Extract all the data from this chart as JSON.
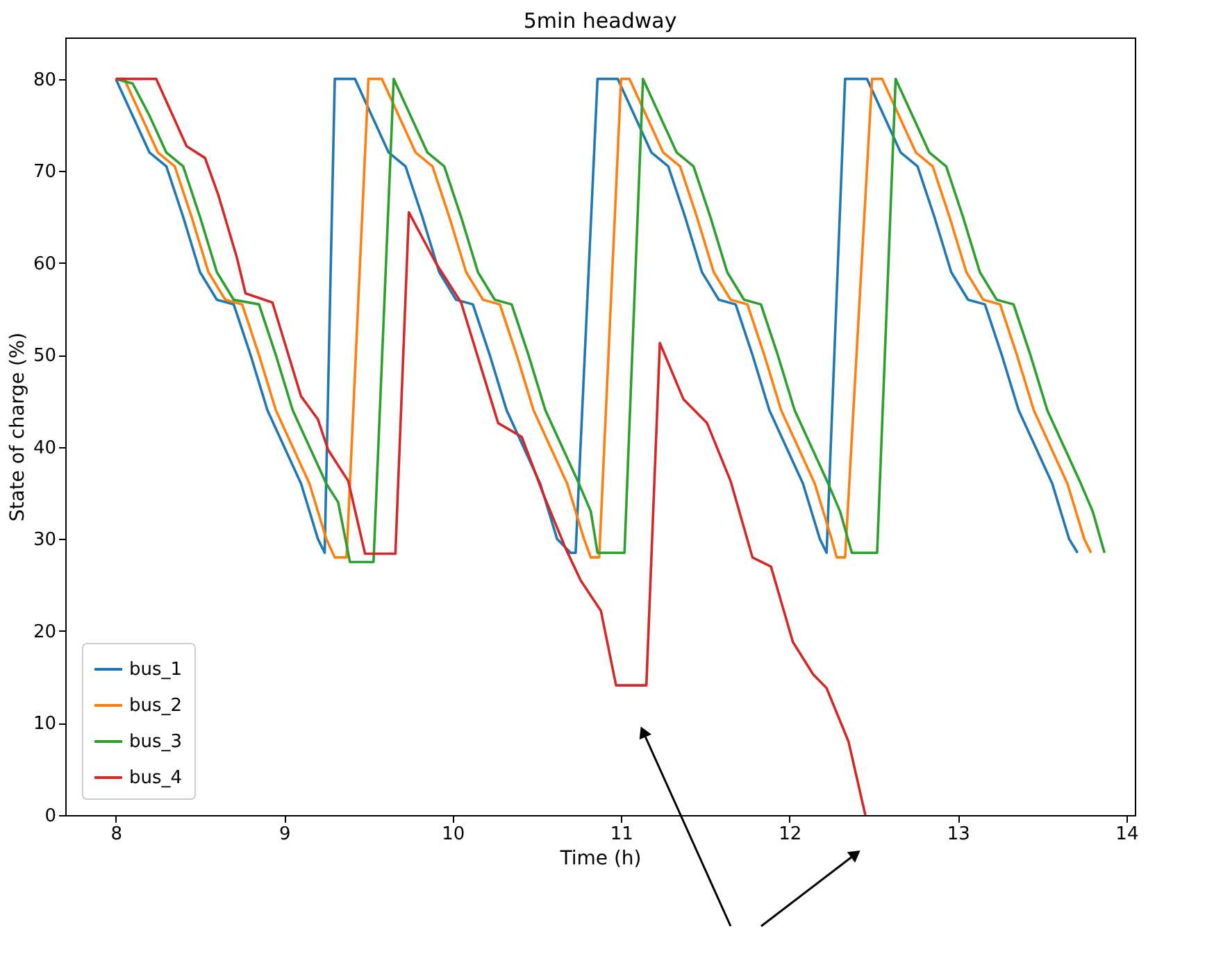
{
  "chart_data": {
    "type": "line",
    "title": "5min headway",
    "xlabel": "Time (h)",
    "ylabel": "State of charge (%)",
    "xlim": [
      7.7,
      14.05
    ],
    "ylim": [
      0,
      84.5
    ],
    "xticks": [
      8,
      9,
      10,
      11,
      12,
      13,
      14
    ],
    "yticks": [
      0,
      10,
      20,
      30,
      40,
      50,
      60,
      70,
      80
    ],
    "grid": false,
    "legend": "bottom left",
    "marker": "none",
    "line_style": "solid",
    "series": [
      {
        "name": "bus_1",
        "color": "#1f77b4",
        "x": [
          8.0,
          8.1,
          8.2,
          8.3,
          8.4,
          8.5,
          8.6,
          8.7,
          8.8,
          8.9,
          9.0,
          9.1,
          9.2,
          9.24,
          9.3,
          9.42,
          9.52,
          9.62,
          9.72,
          9.82,
          9.92,
          10.02,
          10.12,
          10.22,
          10.32,
          10.42,
          10.52,
          10.62,
          10.7,
          10.73,
          10.86,
          10.98,
          11.08,
          11.18,
          11.28,
          11.38,
          11.48,
          11.58,
          11.68,
          11.78,
          11.88,
          11.98,
          12.08,
          12.18,
          12.22,
          12.33,
          12.46,
          12.56,
          12.66,
          12.76,
          12.86,
          12.96,
          13.06,
          13.16,
          13.26,
          13.36,
          13.46,
          13.56,
          13.66,
          13.71
        ],
        "values": [
          80,
          76,
          72,
          70.5,
          65,
          59,
          56,
          55.5,
          50,
          44,
          40,
          36,
          30,
          28.5,
          80,
          80,
          76,
          72,
          70.5,
          65,
          59,
          56,
          55.5,
          50,
          44,
          40,
          36,
          30,
          28.5,
          28.5,
          80,
          80,
          76,
          72,
          70.5,
          65,
          59,
          56,
          55.5,
          50,
          44,
          40,
          36,
          30,
          28.5,
          80,
          80,
          76,
          72,
          70.5,
          65,
          59,
          56,
          55.5,
          50,
          44,
          40,
          36,
          30,
          28.5
        ]
      },
      {
        "name": "bus_2",
        "color": "#ff7f0e",
        "x": [
          8.0,
          8.05,
          8.15,
          8.25,
          8.35,
          8.45,
          8.55,
          8.65,
          8.75,
          8.85,
          8.95,
          9.05,
          9.15,
          9.25,
          9.3,
          9.37,
          9.5,
          9.58,
          9.68,
          9.78,
          9.88,
          9.98,
          10.08,
          10.18,
          10.28,
          10.38,
          10.48,
          10.58,
          10.68,
          10.78,
          10.82,
          10.87,
          11.0,
          11.05,
          11.15,
          11.25,
          11.35,
          11.45,
          11.55,
          11.65,
          11.75,
          11.85,
          11.95,
          12.05,
          12.15,
          12.25,
          12.28,
          12.33,
          12.49,
          12.55,
          12.65,
          12.75,
          12.85,
          12.95,
          13.05,
          13.15,
          13.25,
          13.35,
          13.45,
          13.55,
          13.65,
          13.75,
          13.79
        ],
        "values": [
          80,
          80,
          76,
          72,
          70.5,
          65,
          59,
          56,
          55.5,
          50,
          44,
          40,
          36,
          30,
          28,
          28,
          80,
          80,
          76,
          72,
          70.5,
          65,
          59,
          56,
          55.5,
          50,
          44,
          40,
          36,
          30,
          28,
          28,
          80,
          80,
          76,
          72,
          70.5,
          65,
          59,
          56,
          55.5,
          50,
          44,
          40,
          36,
          30,
          28,
          28,
          80,
          80,
          76,
          72,
          70.5,
          65,
          59,
          56,
          55.5,
          50,
          44,
          40,
          36,
          30,
          28.5
        ]
      },
      {
        "name": "bus_3",
        "color": "#2ca02c",
        "x": [
          8.0,
          8.1,
          8.2,
          8.3,
          8.4,
          8.5,
          8.6,
          8.7,
          8.85,
          8.95,
          9.05,
          9.15,
          9.25,
          9.32,
          9.39,
          9.53,
          9.65,
          9.75,
          9.85,
          9.95,
          10.05,
          10.15,
          10.25,
          10.35,
          10.45,
          10.55,
          10.65,
          10.75,
          10.82,
          10.86,
          11.02,
          11.13,
          11.23,
          11.33,
          11.43,
          11.53,
          11.63,
          11.73,
          11.83,
          11.93,
          12.03,
          12.13,
          12.23,
          12.3,
          12.37,
          12.52,
          12.63,
          12.73,
          12.83,
          12.93,
          13.03,
          13.13,
          13.23,
          13.33,
          13.43,
          13.53,
          13.63,
          13.73,
          13.8,
          13.87
        ],
        "values": [
          80,
          79.5,
          76,
          72,
          70.5,
          65,
          59,
          56,
          55.5,
          50,
          44,
          40,
          36,
          34,
          27.5,
          27.5,
          80,
          76,
          72,
          70.5,
          65,
          59,
          56,
          55.5,
          50,
          44,
          40,
          36,
          33,
          28.5,
          28.5,
          80,
          76,
          72,
          70.5,
          65,
          59,
          56,
          55.5,
          50,
          44,
          40,
          36,
          33,
          28.5,
          28.5,
          80,
          76,
          72,
          70.5,
          65,
          59,
          56,
          55.5,
          50,
          44,
          40,
          36,
          33,
          28.5
        ]
      },
      {
        "name": "bus_4",
        "color": "#d62728",
        "x": [
          8.0,
          8.24,
          8.42,
          8.53,
          8.61,
          8.72,
          8.77,
          8.93,
          9.02,
          9.1,
          9.2,
          9.26,
          9.38,
          9.48,
          9.66,
          9.74,
          9.9,
          10.05,
          10.27,
          10.41,
          10.54,
          10.67,
          10.76,
          10.88,
          10.97,
          11.15,
          11.23,
          11.37,
          11.51,
          11.65,
          11.78,
          11.89,
          12.02,
          12.14,
          12.22,
          12.35,
          12.45
        ],
        "values": [
          80,
          80,
          72.7,
          71.4,
          67.3,
          60.5,
          56.7,
          55.7,
          50.3,
          45.5,
          43,
          39.7,
          36.3,
          28.4,
          28.4,
          65.5,
          60,
          55.7,
          42.6,
          41.1,
          34.8,
          29,
          25.5,
          22.2,
          14.1,
          14.1,
          51.3,
          45.2,
          42.6,
          36.3,
          28,
          27,
          18.8,
          15.3,
          13.8,
          8,
          0
        ]
      }
    ]
  }
}
